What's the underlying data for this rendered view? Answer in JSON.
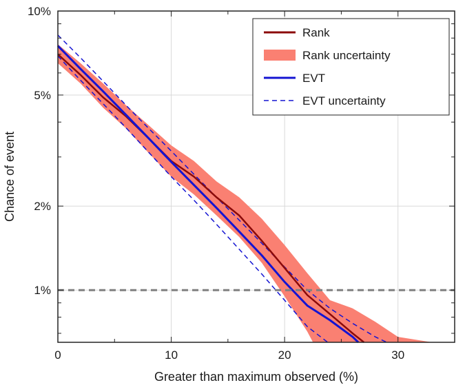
{
  "chart_data": {
    "type": "line",
    "xlabel": "Greater than maximum observed (%)",
    "ylabel": "Chance of event",
    "xlim": [
      0,
      35
    ],
    "ylim": [
      0.65,
      10
    ],
    "yscale": "log",
    "grid": true,
    "x_ticks": [
      0,
      10,
      20,
      30
    ],
    "x_tick_labels": [
      "0",
      "10",
      "20",
      "30"
    ],
    "y_ticks": [
      1,
      2,
      5,
      10
    ],
    "y_tick_labels": [
      "1%",
      "2%",
      "5%",
      "10%"
    ],
    "reference_line": {
      "y": 1,
      "style": "dashed",
      "color": "#808080"
    },
    "legend": {
      "position": "top-right",
      "entries": [
        {
          "label": "Rank",
          "color": "#8b0a0a",
          "style": "solid"
        },
        {
          "label": "Rank uncertainty",
          "color": "#fa8072",
          "style": "band"
        },
        {
          "label": "EVT",
          "color": "#1414d2",
          "style": "solid"
        },
        {
          "label": "EVT uncertainty",
          "color": "#1414d2",
          "style": "dashed"
        }
      ]
    },
    "series": [
      {
        "name": "Rank",
        "x": [
          0,
          2,
          4,
          6,
          8,
          10,
          12,
          14,
          16,
          18,
          20,
          22,
          24,
          26,
          27
        ],
        "y": [
          7.0,
          5.9,
          4.9,
          4.2,
          3.5,
          2.9,
          2.55,
          2.15,
          1.85,
          1.5,
          1.2,
          0.96,
          0.82,
          0.7,
          0.65
        ]
      },
      {
        "name": "Rank uncertainty upper",
        "x": [
          0,
          2,
          4,
          6,
          8,
          10,
          12,
          14,
          16,
          18,
          20,
          22,
          24,
          26,
          28,
          30,
          33
        ],
        "y": [
          7.6,
          6.5,
          5.5,
          4.6,
          3.9,
          3.3,
          2.9,
          2.45,
          2.15,
          1.8,
          1.45,
          1.15,
          0.92,
          0.86,
          0.77,
          0.68,
          0.65
        ]
      },
      {
        "name": "Rank uncertainty lower",
        "x": [
          0,
          2,
          4,
          6,
          8,
          10,
          12,
          14,
          16,
          18,
          20,
          22,
          22.5
        ],
        "y": [
          6.5,
          5.5,
          4.5,
          3.8,
          3.1,
          2.55,
          2.2,
          1.85,
          1.55,
          1.25,
          0.95,
          0.71,
          0.65
        ]
      },
      {
        "name": "EVT",
        "x": [
          0,
          2,
          4,
          6,
          8,
          10,
          12,
          14,
          16,
          18,
          20,
          22,
          24,
          26,
          26.5
        ],
        "y": [
          7.5,
          6.2,
          5.15,
          4.25,
          3.5,
          2.88,
          2.38,
          1.97,
          1.62,
          1.33,
          1.07,
          0.88,
          0.78,
          0.68,
          0.65
        ]
      },
      {
        "name": "EVT uncertainty upper",
        "x": [
          0,
          2,
          4,
          6,
          8,
          10,
          12,
          14,
          16,
          18,
          20,
          22,
          24,
          26,
          28,
          29
        ],
        "y": [
          8.2,
          6.8,
          5.6,
          4.6,
          3.8,
          3.15,
          2.6,
          2.15,
          1.78,
          1.47,
          1.21,
          1.0,
          0.86,
          0.76,
          0.68,
          0.65
        ]
      },
      {
        "name": "EVT uncertainty lower",
        "x": [
          0,
          2,
          4,
          6,
          8,
          10,
          12,
          14,
          16,
          18,
          20,
          22,
          23.8
        ],
        "y": [
          6.9,
          5.65,
          4.65,
          3.82,
          3.12,
          2.55,
          2.1,
          1.72,
          1.4,
          1.14,
          0.92,
          0.74,
          0.65
        ]
      }
    ]
  }
}
